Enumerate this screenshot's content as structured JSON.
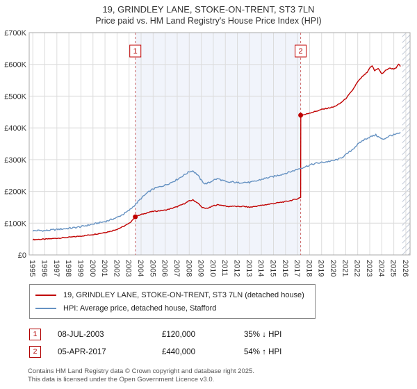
{
  "title": "19, GRINDLEY LANE, STOKE-ON-TRENT, ST3 7LN",
  "subtitle": "Price paid vs. HM Land Registry's House Price Index (HPI)",
  "chart_data": {
    "type": "line",
    "x_range": [
      1994.7,
      2026.35
    ],
    "y_range": [
      0,
      700000
    ],
    "x_ticks": [
      1995,
      1996,
      1997,
      1998,
      1999,
      2000,
      2001,
      2002,
      2003,
      2004,
      2005,
      2006,
      2007,
      2008,
      2009,
      2010,
      2011,
      2012,
      2013,
      2014,
      2015,
      2016,
      2017,
      2018,
      2019,
      2020,
      2021,
      2022,
      2023,
      2024,
      2025,
      2026
    ],
    "y_ticks": [
      0,
      100000,
      200000,
      300000,
      400000,
      500000,
      600000,
      700000
    ],
    "y_tick_labels": [
      "£0",
      "£100K",
      "£200K",
      "£300K",
      "£400K",
      "£500K",
      "£600K",
      "£700K"
    ],
    "shade_color": "#e7edf8",
    "shaded_region": [
      2003.52,
      2017.26
    ],
    "hatched_region": [
      2025.7,
      2026.35
    ],
    "sales": [
      {
        "label": "1",
        "x": 2003.52,
        "y": 120000
      },
      {
        "label": "2",
        "x": 2017.26,
        "y": 440000
      }
    ],
    "series": [
      {
        "name": "19, GRINDLEY LANE, STOKE-ON-TRENT, ST3 7LN (detached house)",
        "color": "#c00000",
        "jitter": 1500,
        "anchors": [
          [
            1995.0,
            48000
          ],
          [
            1995.5,
            49000
          ],
          [
            1996.0,
            49500
          ],
          [
            1996.5,
            51000
          ],
          [
            1997.0,
            52500
          ],
          [
            1997.5,
            54000
          ],
          [
            1998.0,
            55500
          ],
          [
            1998.5,
            57500
          ],
          [
            1999.0,
            59500
          ],
          [
            1999.5,
            62000
          ],
          [
            2000.0,
            64500
          ],
          [
            2000.5,
            67500
          ],
          [
            2001.0,
            71000
          ],
          [
            2001.5,
            75000
          ],
          [
            2002.0,
            81000
          ],
          [
            2002.5,
            89000
          ],
          [
            2003.0,
            99000
          ],
          [
            2003.52,
            120000
          ],
          [
            2004.0,
            127000
          ],
          [
            2004.5,
            133000
          ],
          [
            2005.0,
            137000
          ],
          [
            2005.5,
            139000
          ],
          [
            2006.0,
            141000
          ],
          [
            2006.5,
            146000
          ],
          [
            2007.0,
            152000
          ],
          [
            2007.5,
            160000
          ],
          [
            2008.0,
            170000
          ],
          [
            2008.3,
            173000
          ],
          [
            2008.7,
            164000
          ],
          [
            2009.0,
            152000
          ],
          [
            2009.3,
            146000
          ],
          [
            2009.7,
            149000
          ],
          [
            2010.0,
            155000
          ],
          [
            2010.4,
            158000
          ],
          [
            2010.8,
            156000
          ],
          [
            2011.2,
            152000
          ],
          [
            2011.6,
            154000
          ],
          [
            2012.0,
            152000
          ],
          [
            2012.5,
            153000
          ],
          [
            2013.0,
            150000
          ],
          [
            2013.5,
            153000
          ],
          [
            2014.0,
            156000
          ],
          [
            2014.5,
            159000
          ],
          [
            2015.0,
            162000
          ],
          [
            2015.5,
            165000
          ],
          [
            2016.0,
            168000
          ],
          [
            2016.5,
            172000
          ],
          [
            2017.0,
            177000
          ],
          [
            2017.26,
            181000
          ],
          [
            2017.27,
            440000
          ],
          [
            2017.6,
            442000
          ],
          [
            2018.0,
            447000
          ],
          [
            2018.5,
            452000
          ],
          [
            2019.0,
            458000
          ],
          [
            2019.5,
            462000
          ],
          [
            2020.0,
            466000
          ],
          [
            2020.5,
            476000
          ],
          [
            2021.0,
            492000
          ],
          [
            2021.5,
            515000
          ],
          [
            2022.0,
            545000
          ],
          [
            2022.4,
            562000
          ],
          [
            2022.8,
            575000
          ],
          [
            2023.0,
            588000
          ],
          [
            2023.2,
            596000
          ],
          [
            2023.4,
            580000
          ],
          [
            2023.7,
            588000
          ],
          [
            2024.0,
            570000
          ],
          [
            2024.3,
            580000
          ],
          [
            2024.6,
            588000
          ],
          [
            2025.0,
            586000
          ],
          [
            2025.2,
            590000
          ],
          [
            2025.4,
            600000
          ],
          [
            2025.55,
            594000
          ]
        ]
      },
      {
        "name": "HPI: Average price, detached house, Stafford",
        "color": "#6692c2",
        "jitter": 2600,
        "anchors": [
          [
            1995.0,
            76000
          ],
          [
            1995.5,
            77000
          ],
          [
            1996.0,
            76500
          ],
          [
            1996.5,
            78500
          ],
          [
            1997.0,
            80000
          ],
          [
            1997.5,
            82000
          ],
          [
            1998.0,
            84000
          ],
          [
            1998.5,
            86000
          ],
          [
            1999.0,
            89000
          ],
          [
            1999.5,
            93000
          ],
          [
            2000.0,
            97000
          ],
          [
            2000.5,
            101000
          ],
          [
            2001.0,
            105000
          ],
          [
            2001.5,
            111000
          ],
          [
            2002.0,
            118000
          ],
          [
            2002.5,
            128000
          ],
          [
            2003.0,
            140000
          ],
          [
            2003.5,
            158000
          ],
          [
            2004.0,
            178000
          ],
          [
            2004.5,
            195000
          ],
          [
            2005.0,
            208000
          ],
          [
            2005.5,
            214000
          ],
          [
            2006.0,
            220000
          ],
          [
            2006.5,
            228000
          ],
          [
            2007.0,
            238000
          ],
          [
            2007.5,
            250000
          ],
          [
            2008.0,
            262000
          ],
          [
            2008.3,
            265000
          ],
          [
            2008.7,
            252000
          ],
          [
            2009.0,
            235000
          ],
          [
            2009.3,
            224000
          ],
          [
            2009.7,
            228000
          ],
          [
            2010.0,
            236000
          ],
          [
            2010.4,
            240000
          ],
          [
            2010.8,
            234000
          ],
          [
            2011.2,
            228000
          ],
          [
            2011.6,
            230000
          ],
          [
            2012.0,
            227000
          ],
          [
            2012.5,
            229000
          ],
          [
            2013.0,
            228000
          ],
          [
            2013.5,
            232000
          ],
          [
            2014.0,
            238000
          ],
          [
            2014.5,
            243000
          ],
          [
            2015.0,
            247000
          ],
          [
            2015.5,
            252000
          ],
          [
            2016.0,
            257000
          ],
          [
            2016.5,
            263000
          ],
          [
            2017.0,
            270000
          ],
          [
            2017.5,
            276000
          ],
          [
            2018.0,
            283000
          ],
          [
            2018.5,
            288000
          ],
          [
            2019.0,
            291000
          ],
          [
            2019.5,
            294000
          ],
          [
            2020.0,
            297000
          ],
          [
            2020.5,
            303000
          ],
          [
            2021.0,
            315000
          ],
          [
            2021.5,
            330000
          ],
          [
            2022.0,
            348000
          ],
          [
            2022.4,
            360000
          ],
          [
            2022.8,
            368000
          ],
          [
            2023.2,
            374000
          ],
          [
            2023.5,
            378000
          ],
          [
            2023.8,
            370000
          ],
          [
            2024.1,
            363000
          ],
          [
            2024.4,
            370000
          ],
          [
            2024.7,
            376000
          ],
          [
            2025.0,
            378000
          ],
          [
            2025.3,
            381000
          ],
          [
            2025.55,
            384000
          ]
        ]
      }
    ]
  },
  "transactions": [
    {
      "num": "1",
      "date": "08-JUL-2003",
      "price": "£120,000",
      "hpi": "35% ↓ HPI"
    },
    {
      "num": "2",
      "date": "05-APR-2017",
      "price": "£440,000",
      "hpi": "54% ↑ HPI"
    }
  ],
  "footer": {
    "line1": "Contains HM Land Registry data © Crown copyright and database right 2025.",
    "line2": "This data is licensed under the Open Government Licence v3.0."
  }
}
